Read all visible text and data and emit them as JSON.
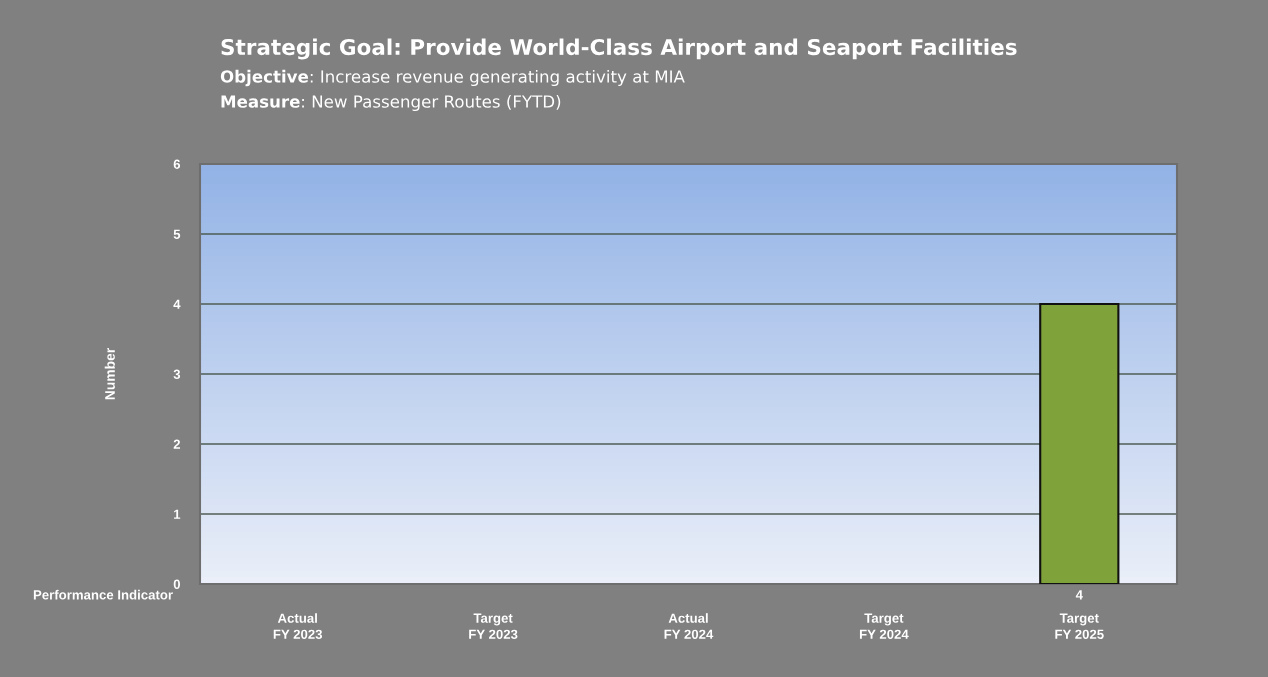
{
  "chart_data": {
    "type": "bar",
    "title": "Strategic Goal: Provide World-Class Airport and Seaport Facilities",
    "subtitle": "Objective: Increase revenue generating activity at MIA\nMeasure: New Passenger Routes (FYTD)",
    "ylabel": "Number",
    "categories": [
      "Actual\nFY 2023",
      "Target\nFY 2023",
      "Actual\nFY 2024",
      "Target\nFY 2024",
      "Target\nFY 2025"
    ],
    "series": [
      {
        "name": "Performance Indicator",
        "color": "#7fa23a",
        "values": [
          null,
          null,
          null,
          null,
          4
        ],
        "value_labels": [
          null,
          null,
          null,
          null,
          "4"
        ]
      }
    ],
    "ylim": [
      0,
      6
    ],
    "yticks": [
      0,
      1,
      2,
      3,
      4,
      5,
      6
    ],
    "grid": "y"
  }
}
